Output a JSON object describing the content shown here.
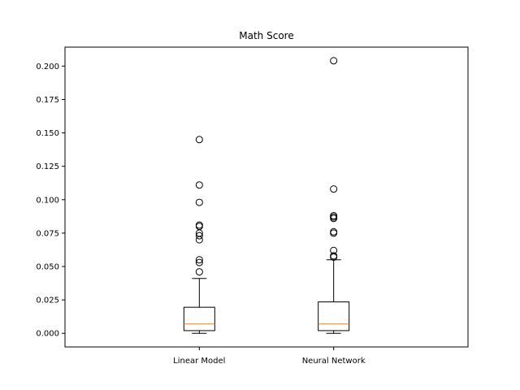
{
  "chart_data": {
    "type": "boxplot",
    "title": "Math Score",
    "xlabel": "",
    "ylabel": "",
    "ylim": [
      -0.0102,
      0.2142
    ],
    "y_ticks": [
      0.0,
      0.025,
      0.05,
      0.075,
      0.1,
      0.125,
      0.15,
      0.175,
      0.2
    ],
    "y_tick_labels": [
      "0.000",
      "0.025",
      "0.050",
      "0.075",
      "0.100",
      "0.125",
      "0.150",
      "0.175",
      "0.200"
    ],
    "grid": false,
    "categories": [
      "Linear Model",
      "Neural Network"
    ],
    "series": [
      {
        "category": "Linear Model",
        "whisker_low": 0.0,
        "q1": 0.002,
        "median": 0.007,
        "q3": 0.0195,
        "whisker_high": 0.041,
        "outliers": [
          0.145,
          0.111,
          0.098,
          0.081,
          0.08,
          0.075,
          0.073,
          0.07,
          0.055,
          0.053,
          0.046
        ]
      },
      {
        "category": "Neural Network",
        "whisker_low": 0.0,
        "q1": 0.002,
        "median": 0.007,
        "q3": 0.0235,
        "whisker_high": 0.055,
        "outliers": [
          0.204,
          0.108,
          0.088,
          0.087,
          0.086,
          0.076,
          0.075,
          0.062,
          0.058,
          0.057
        ]
      }
    ],
    "colors": {
      "box": "#000000",
      "median": "#ff7f0e",
      "outlier": "#000000"
    }
  }
}
